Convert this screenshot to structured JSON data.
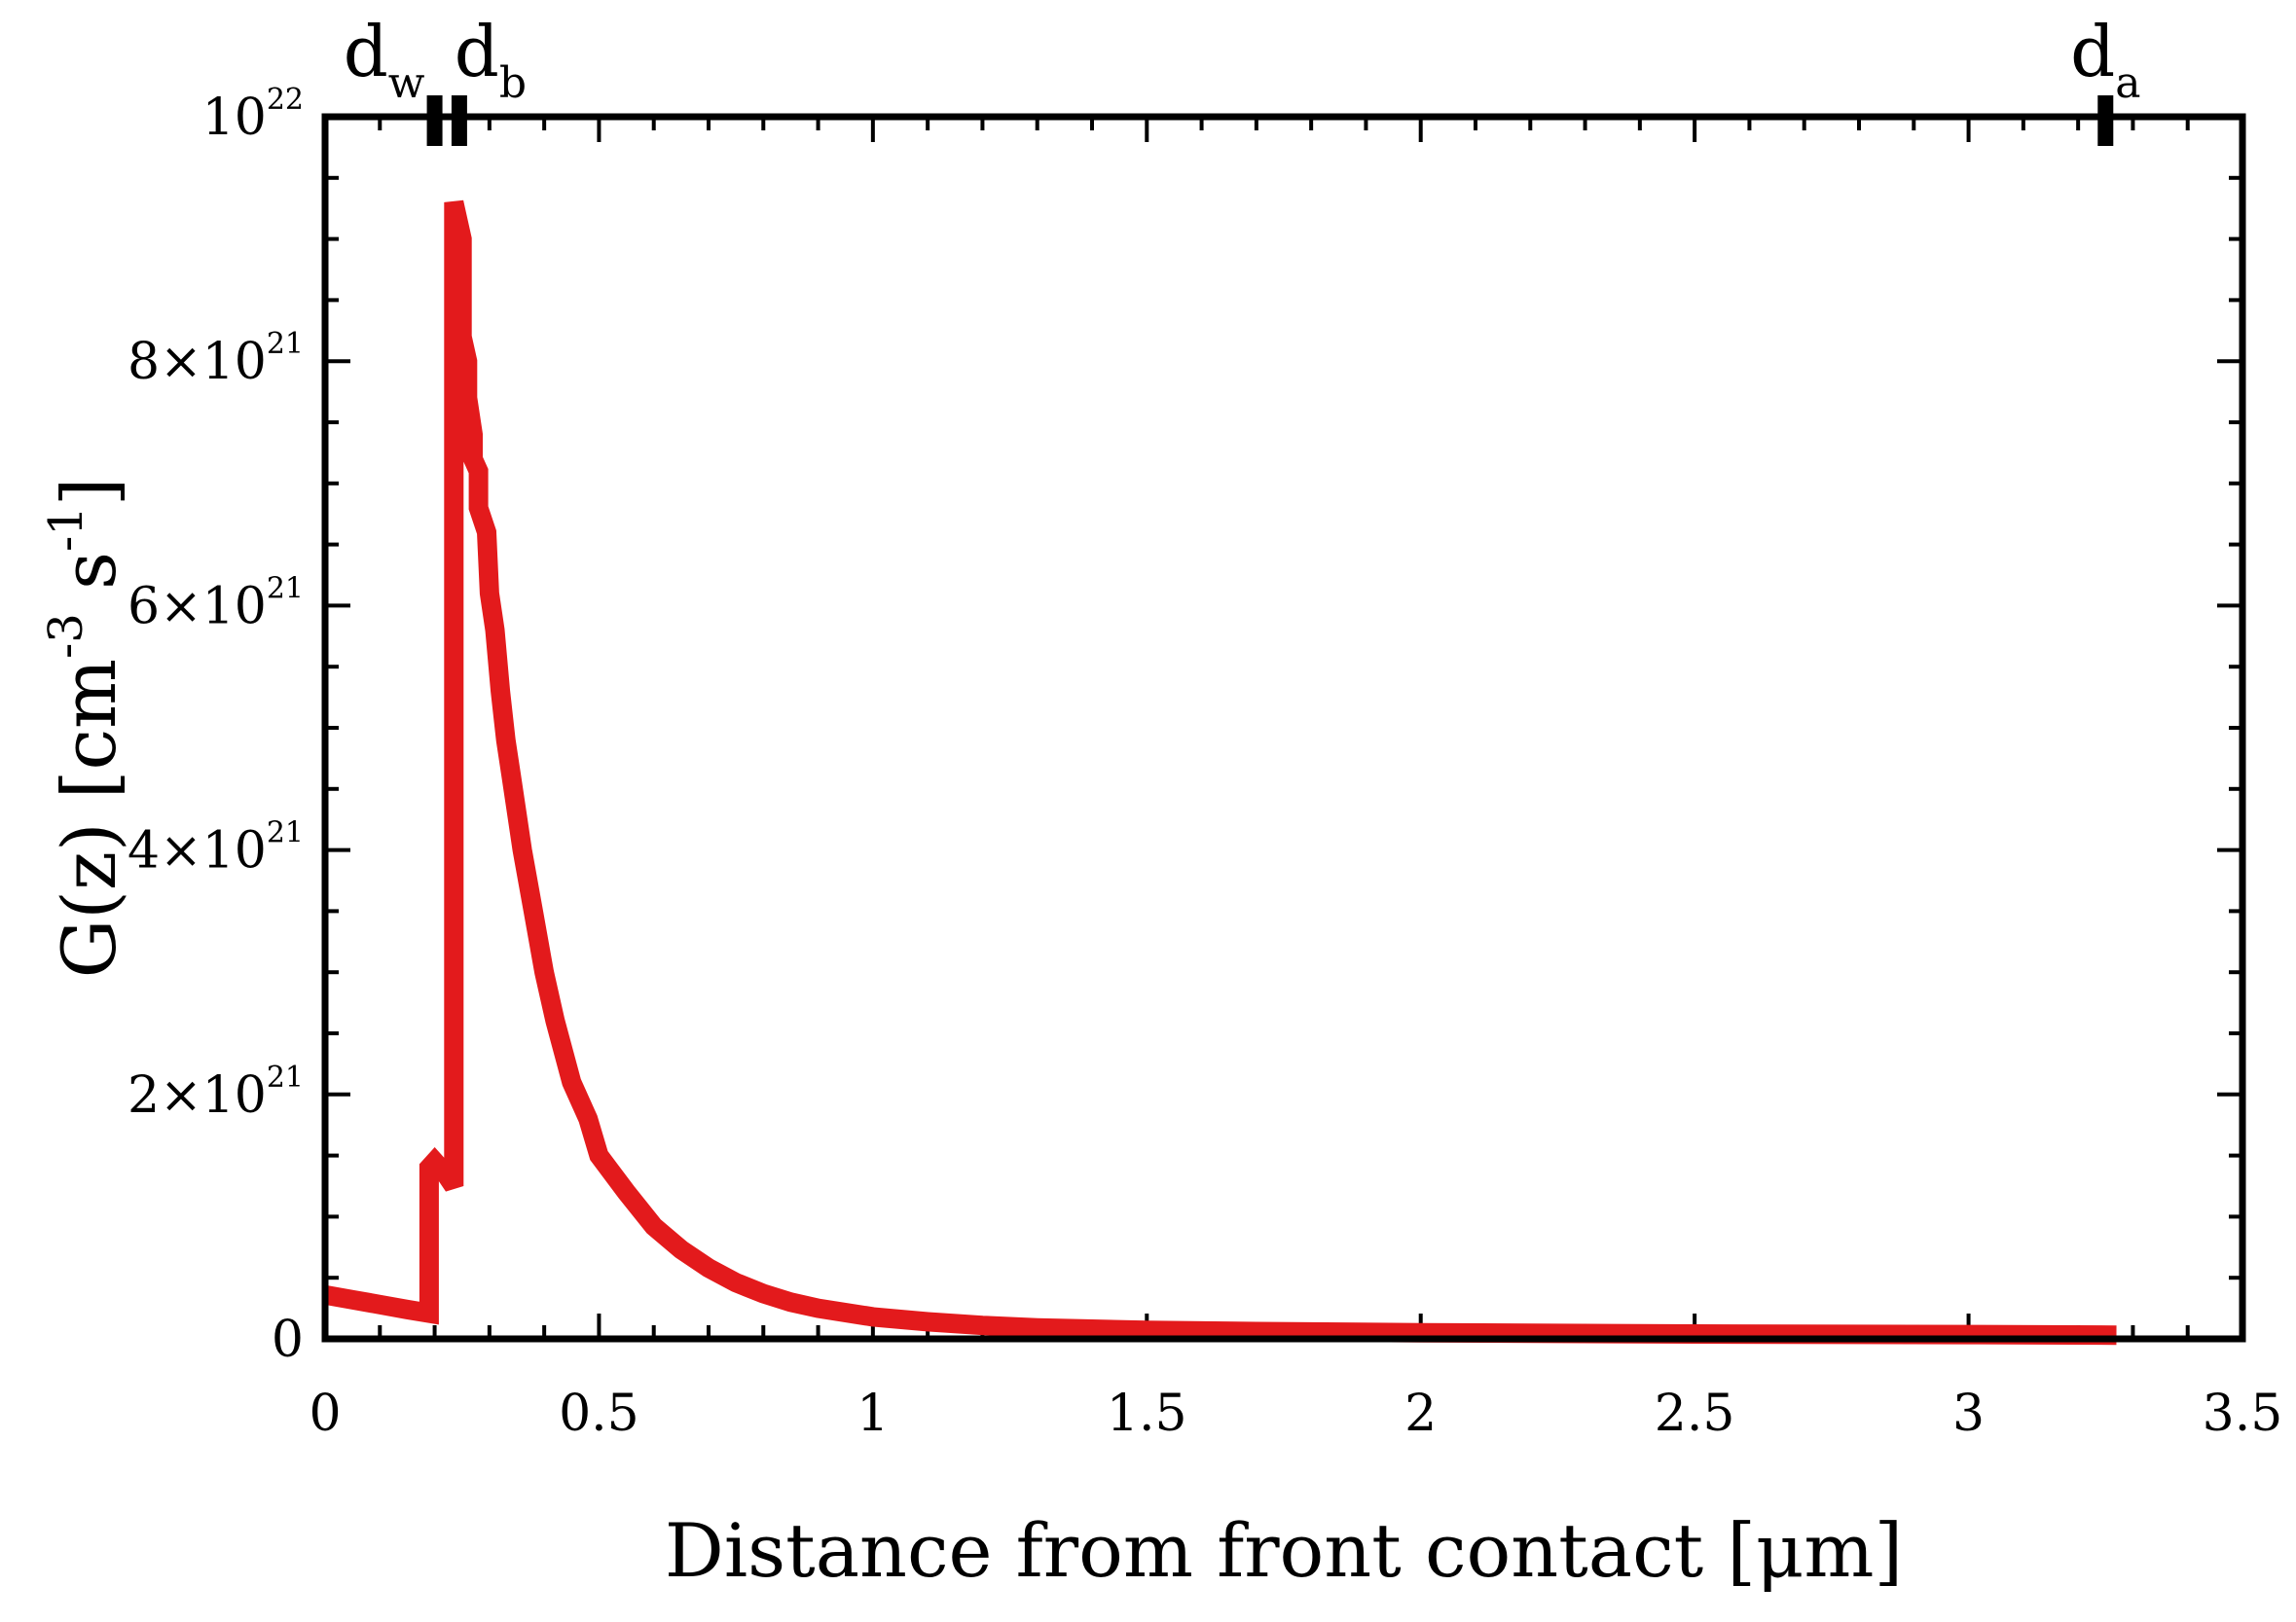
{
  "chart_data": {
    "type": "line",
    "title": "",
    "xlabel": "Distance from front contact [μm]",
    "ylabel": "G(z) [cm-3 s-1]",
    "ylabel_parts": {
      "main": "G(z) [cm",
      "sup1": "-3",
      "mid": " s",
      "sup2": "-1",
      "end": "]"
    },
    "xlim": [
      0,
      3.5
    ],
    "ylim": [
      0,
      1e+22
    ],
    "x_ticks": [
      {
        "value": 0,
        "label": "0"
      },
      {
        "value": 0.5,
        "label": "0.5"
      },
      {
        "value": 1,
        "label": "1"
      },
      {
        "value": 1.5,
        "label": "1.5"
      },
      {
        "value": 2,
        "label": "2"
      },
      {
        "value": 2.5,
        "label": "2.5"
      },
      {
        "value": 3,
        "label": "3"
      },
      {
        "value": 3.5,
        "label": "3.5"
      }
    ],
    "y_ticks": [
      {
        "value": 0,
        "mantissa": "0",
        "exp": ""
      },
      {
        "value": 2e+21,
        "mantissa": "2×10",
        "exp": "21"
      },
      {
        "value": 4e+21,
        "mantissa": "4×10",
        "exp": "21"
      },
      {
        "value": 6e+21,
        "mantissa": "6×10",
        "exp": "21"
      },
      {
        "value": 8e+21,
        "mantissa": "8×10",
        "exp": "21"
      },
      {
        "value": 1e+22,
        "mantissa": "10",
        "exp": "22"
      }
    ],
    "grid": false,
    "line_color": "#e31a1c",
    "markers": [
      {
        "name": "d",
        "sub": "w",
        "x": 0.2
      },
      {
        "name": "d",
        "sub": "b",
        "x": 0.245
      },
      {
        "name": "d",
        "sub": "a",
        "x": 3.25
      }
    ],
    "series": [
      {
        "x": [
          0,
          0.05,
          0.1,
          0.15,
          0.19,
          0.19,
          0.2,
          0.22,
          0.235,
          0.235,
          0.25,
          0.25,
          0.26,
          0.26,
          0.27,
          0.27,
          0.28,
          0.28,
          0.295,
          0.3,
          0.31,
          0.32,
          0.33,
          0.34,
          0.35,
          0.36,
          0.38,
          0.4,
          0.42,
          0.45,
          0.48,
          0.5,
          0.55,
          0.6,
          0.65,
          0.7,
          0.75,
          0.8,
          0.85,
          0.9,
          1.0,
          1.1,
          1.2,
          1.3,
          1.4,
          1.5,
          1.7,
          2.0,
          2.5,
          3.0,
          3.27
        ],
        "y": [
          3.6e+20,
          3.2e+20,
          2.8e+20,
          2.4e+20,
          2.1e+20,
          1.4e+21,
          1.45e+21,
          1.35e+21,
          1.25e+21,
          9.3e+21,
          9e+21,
          8.2e+21,
          8e+21,
          7.7e+21,
          7.4e+21,
          7.2e+21,
          7.1e+21,
          6.8e+21,
          6.6e+21,
          6.1e+21,
          5.8e+21,
          5.3e+21,
          4.9e+21,
          4.6e+21,
          4.3e+21,
          4e+21,
          3.5e+21,
          3e+21,
          2.6e+21,
          2.1e+21,
          1.8e+21,
          1.5e+21,
          1.2e+21,
          9.2e+20,
          7.3e+20,
          5.8e+20,
          4.6e+20,
          3.7e+20,
          3e+20,
          2.5e+20,
          1.8e+20,
          1.4e+20,
          1.1e+20,
          9e+19,
          8e+19,
          7e+19,
          6e+19,
          5e+19,
          4e+19,
          3.5e+19,
          3e+19
        ]
      }
    ]
  }
}
